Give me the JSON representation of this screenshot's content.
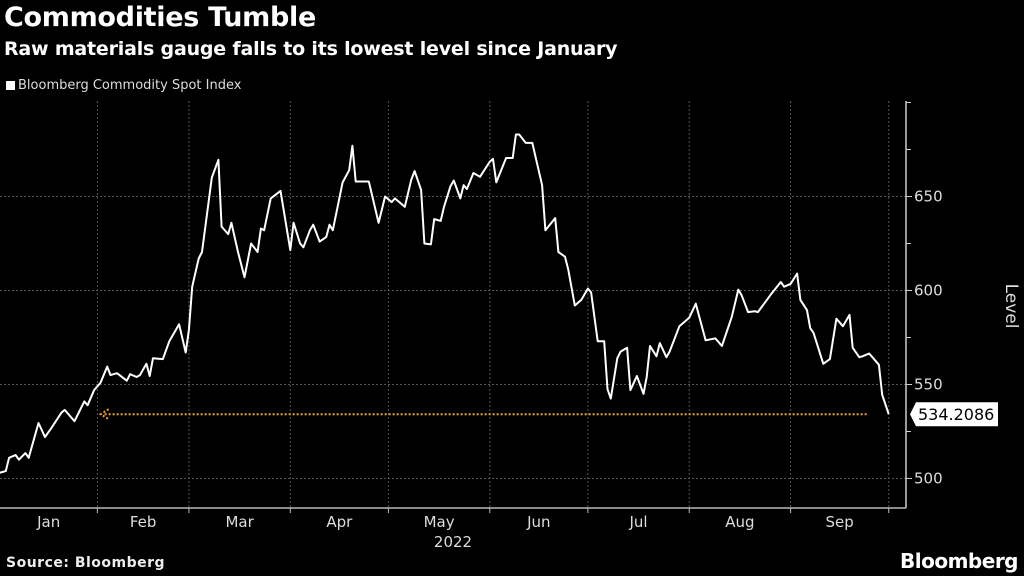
{
  "title": "Commodities Tumble",
  "subtitle": "Raw materials gauge falls to its lowest level since January",
  "source": "Source: Bloomberg",
  "logo": "Bloomberg",
  "colors": {
    "background": "#000000",
    "line": "#ffffff",
    "reference_line": "#e8a040",
    "grid": "#555555"
  },
  "chart_data": {
    "type": "line",
    "title": "Commodities Tumble",
    "subtitle": "Raw materials gauge falls to its lowest level since January",
    "ylabel": "Level",
    "xlabel": "2022",
    "ylim": [
      484,
      701
    ],
    "yticks": [
      500,
      550,
      600,
      650
    ],
    "xticks": [
      "Jan",
      "Feb",
      "Mar",
      "Apr",
      "May",
      "Jun",
      "Jul",
      "Aug",
      "Sep"
    ],
    "grid": true,
    "y_axis_side": "right",
    "legend": {
      "position": "top-left",
      "entries": [
        "Bloomberg Commodity Spot Index"
      ]
    },
    "last_value_label": "534.2086",
    "reference_line": {
      "value": 534.2086,
      "from": "2022-02-02",
      "style": "dotted-arrow-left"
    },
    "series": [
      {
        "name": "Bloomberg Commodity Spot Index",
        "points": [
          [
            "2022-01-02",
            503
          ],
          [
            "2022-01-04",
            504
          ],
          [
            "2022-01-05",
            511
          ],
          [
            "2022-01-07",
            512.5
          ],
          [
            "2022-01-08",
            510
          ],
          [
            "2022-01-10",
            513.5
          ],
          [
            "2022-01-11",
            511
          ],
          [
            "2022-01-14",
            529.5
          ],
          [
            "2022-01-16",
            522
          ],
          [
            "2022-01-18",
            527
          ],
          [
            "2022-01-21",
            535
          ],
          [
            "2022-01-22",
            536.5
          ],
          [
            "2022-01-25",
            530.5
          ],
          [
            "2022-01-28",
            541
          ],
          [
            "2022-01-29",
            539
          ],
          [
            "2022-01-31",
            547
          ],
          [
            "2022-02-02",
            551
          ],
          [
            "2022-02-04",
            559.5
          ],
          [
            "2022-02-05",
            555
          ],
          [
            "2022-02-07",
            556
          ],
          [
            "2022-02-10",
            552
          ],
          [
            "2022-02-11",
            555.5
          ],
          [
            "2022-02-13",
            554
          ],
          [
            "2022-02-14",
            555
          ],
          [
            "2022-02-16",
            561
          ],
          [
            "2022-02-17",
            554.5
          ],
          [
            "2022-02-18",
            564
          ],
          [
            "2022-02-21",
            563.5
          ],
          [
            "2022-02-23",
            573
          ],
          [
            "2022-02-26",
            582
          ],
          [
            "2022-02-28",
            567
          ],
          [
            "2022-03-01",
            579
          ],
          [
            "2022-03-02",
            602
          ],
          [
            "2022-03-04",
            617
          ],
          [
            "2022-03-05",
            620.5
          ],
          [
            "2022-03-08",
            660
          ],
          [
            "2022-03-10",
            669.5
          ],
          [
            "2022-03-11",
            634
          ],
          [
            "2022-03-13",
            630
          ],
          [
            "2022-03-14",
            636
          ],
          [
            "2022-03-16",
            620.5
          ],
          [
            "2022-03-18",
            607
          ],
          [
            "2022-03-20",
            625
          ],
          [
            "2022-03-22",
            620.5
          ],
          [
            "2022-03-23",
            633
          ],
          [
            "2022-03-24",
            632
          ],
          [
            "2022-03-26",
            649
          ],
          [
            "2022-03-29",
            653
          ],
          [
            "2022-04-01",
            621.5
          ],
          [
            "2022-04-02",
            636
          ],
          [
            "2022-04-04",
            625
          ],
          [
            "2022-04-05",
            623
          ],
          [
            "2022-04-07",
            632
          ],
          [
            "2022-04-08",
            635
          ],
          [
            "2022-04-10",
            626
          ],
          [
            "2022-04-12",
            628.5
          ],
          [
            "2022-04-13",
            635
          ],
          [
            "2022-04-14",
            632
          ],
          [
            "2022-04-17",
            657.5
          ],
          [
            "2022-04-19",
            664
          ],
          [
            "2022-04-20",
            677
          ],
          [
            "2022-04-21",
            658
          ],
          [
            "2022-04-25",
            658
          ],
          [
            "2022-04-28",
            636
          ],
          [
            "2022-04-30",
            650
          ],
          [
            "2022-05-02",
            647
          ],
          [
            "2022-05-03",
            649
          ],
          [
            "2022-05-06",
            644.5
          ],
          [
            "2022-05-08",
            659
          ],
          [
            "2022-05-09",
            663.5
          ],
          [
            "2022-05-11",
            653.5
          ],
          [
            "2022-05-12",
            625
          ],
          [
            "2022-05-14",
            624.5
          ],
          [
            "2022-05-15",
            638
          ],
          [
            "2022-05-17",
            637
          ],
          [
            "2022-05-18",
            644.5
          ],
          [
            "2022-05-20",
            655.5
          ],
          [
            "2022-05-21",
            658.5
          ],
          [
            "2022-05-23",
            649
          ],
          [
            "2022-05-24",
            656
          ],
          [
            "2022-05-25",
            654
          ],
          [
            "2022-05-27",
            662.5
          ],
          [
            "2022-05-29",
            660.5
          ],
          [
            "2022-06-01",
            668.5
          ],
          [
            "2022-06-02",
            670
          ],
          [
            "2022-06-03",
            657.5
          ],
          [
            "2022-06-06",
            670.5
          ],
          [
            "2022-06-08",
            670.5
          ],
          [
            "2022-06-09",
            683
          ],
          [
            "2022-06-10",
            683
          ],
          [
            "2022-06-12",
            678.5
          ],
          [
            "2022-06-14",
            678.5
          ],
          [
            "2022-06-17",
            656
          ],
          [
            "2022-06-18",
            632
          ],
          [
            "2022-06-21",
            638.5
          ],
          [
            "2022-06-22",
            620.5
          ],
          [
            "2022-06-24",
            618
          ],
          [
            "2022-06-25",
            611
          ],
          [
            "2022-06-27",
            592
          ],
          [
            "2022-06-29",
            595
          ],
          [
            "2022-07-01",
            601
          ],
          [
            "2022-07-02",
            599
          ],
          [
            "2022-07-04",
            573
          ],
          [
            "2022-07-06",
            573
          ],
          [
            "2022-07-07",
            547.5
          ],
          [
            "2022-07-08",
            542.5
          ],
          [
            "2022-07-10",
            564
          ],
          [
            "2022-07-11",
            567.5
          ],
          [
            "2022-07-13",
            569.5
          ],
          [
            "2022-07-14",
            547
          ],
          [
            "2022-07-16",
            554.5
          ],
          [
            "2022-07-18",
            545
          ],
          [
            "2022-07-19",
            554
          ],
          [
            "2022-07-20",
            570.5
          ],
          [
            "2022-07-22",
            565
          ],
          [
            "2022-07-23",
            572
          ],
          [
            "2022-07-25",
            564.5
          ],
          [
            "2022-07-26",
            567.5
          ],
          [
            "2022-07-29",
            581
          ],
          [
            "2022-08-01",
            585.5
          ],
          [
            "2022-08-03",
            593
          ],
          [
            "2022-08-06",
            573.5
          ],
          [
            "2022-08-09",
            574.5
          ],
          [
            "2022-08-11",
            570.5
          ],
          [
            "2022-08-14",
            586
          ],
          [
            "2022-08-16",
            600.5
          ],
          [
            "2022-08-17",
            597.5
          ],
          [
            "2022-08-19",
            588.5
          ],
          [
            "2022-08-21",
            589
          ],
          [
            "2022-08-22",
            588.5
          ],
          [
            "2022-08-26",
            598
          ],
          [
            "2022-08-29",
            604.5
          ],
          [
            "2022-08-30",
            602
          ],
          [
            "2022-09-01",
            603.5
          ],
          [
            "2022-09-03",
            609
          ],
          [
            "2022-09-04",
            595
          ],
          [
            "2022-09-06",
            589.5
          ],
          [
            "2022-09-07",
            580
          ],
          [
            "2022-09-08",
            577.5
          ],
          [
            "2022-09-11",
            561
          ],
          [
            "2022-09-13",
            563.5
          ],
          [
            "2022-09-15",
            585
          ],
          [
            "2022-09-17",
            581
          ],
          [
            "2022-09-19",
            587
          ],
          [
            "2022-09-20",
            569.5
          ],
          [
            "2022-09-22",
            564.5
          ],
          [
            "2022-09-23",
            565
          ],
          [
            "2022-09-25",
            566.5
          ],
          [
            "2022-09-26",
            564.5
          ],
          [
            "2022-09-28",
            560.5
          ],
          [
            "2022-09-29",
            544.5
          ],
          [
            "2022-10-01",
            534.2086
          ]
        ]
      }
    ]
  }
}
